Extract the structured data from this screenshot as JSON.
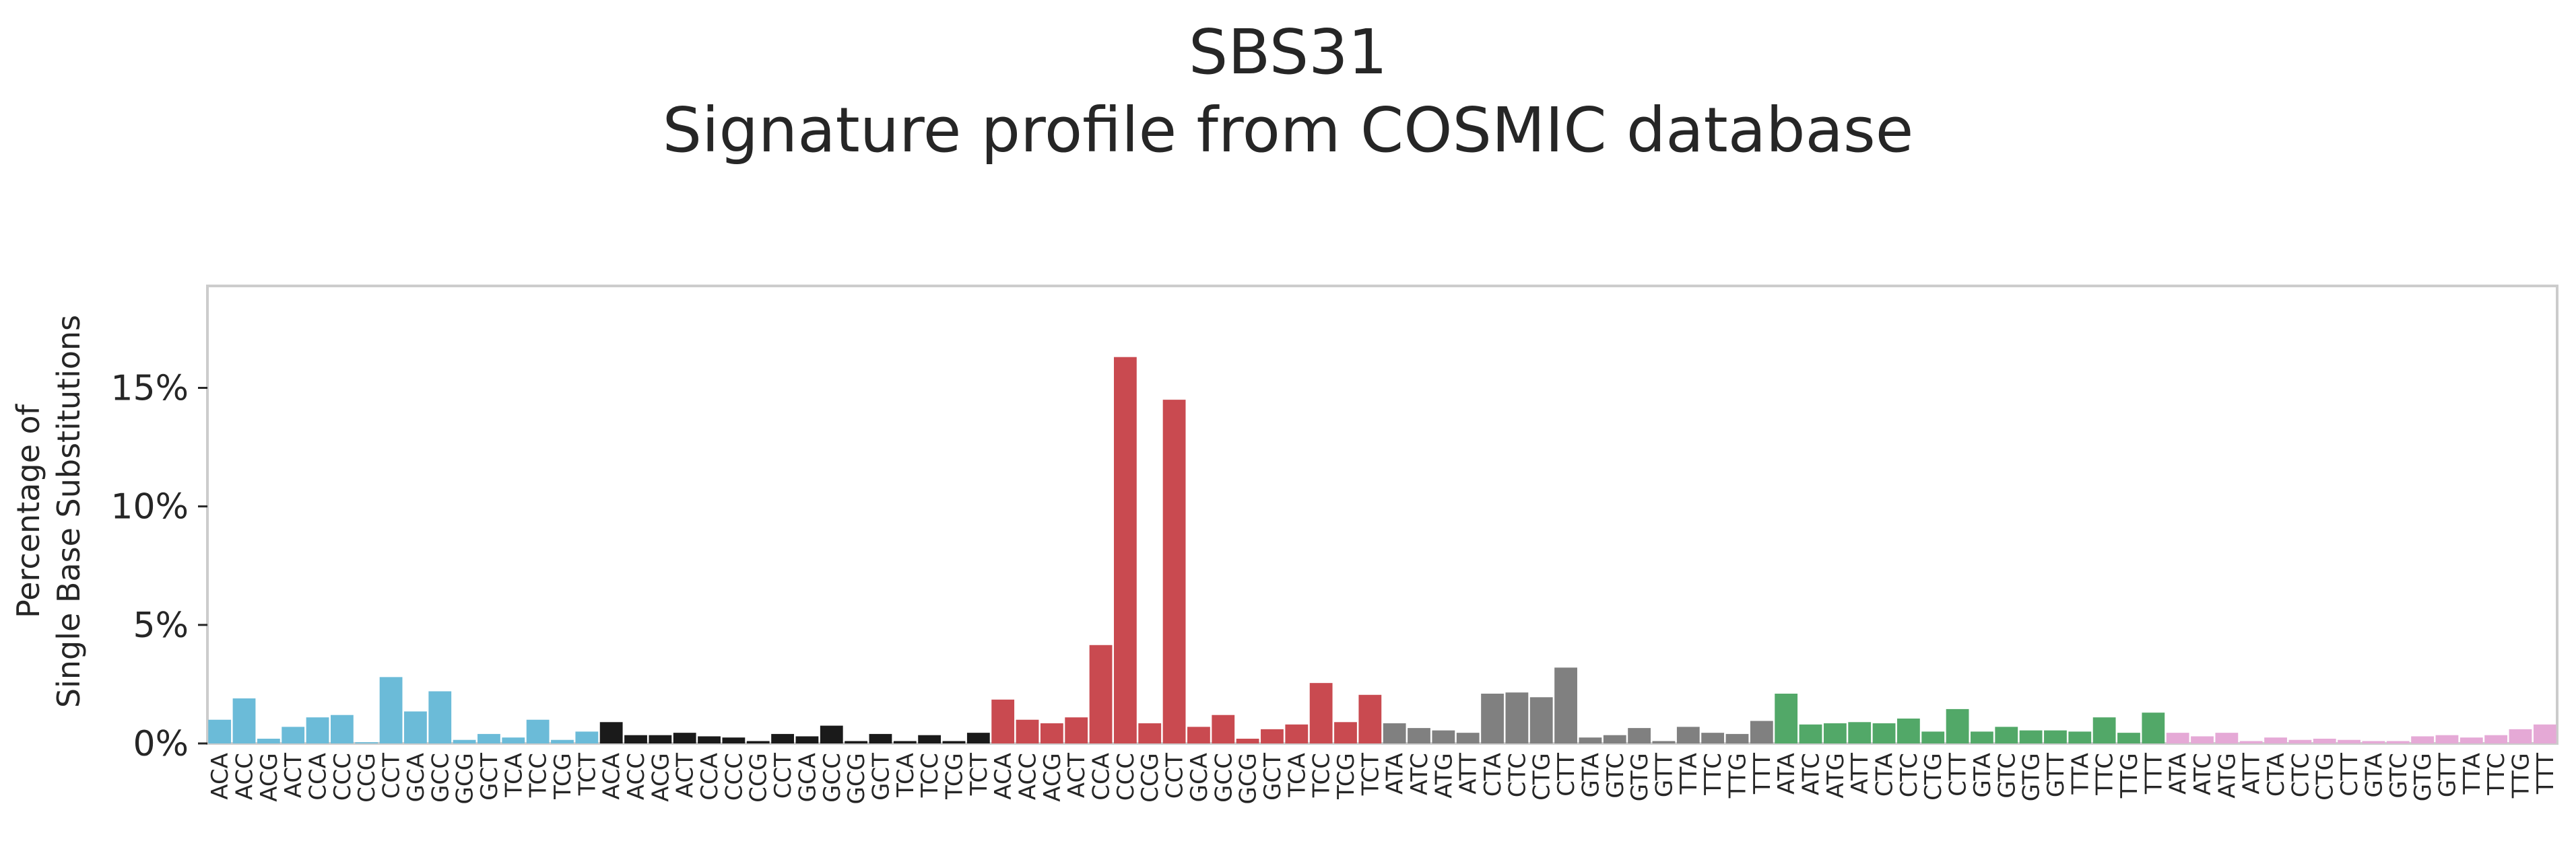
{
  "chart_data": {
    "type": "bar",
    "title": "SBS31",
    "subtitle": "Signature profile from COSMIC database",
    "ylabel_line1": "Percentage of",
    "ylabel_line2": "Single Base Substitutions",
    "ylim": [
      0,
      19.3
    ],
    "yticks": [
      {
        "value": 0,
        "label": "0%"
      },
      {
        "value": 5,
        "label": "5%"
      },
      {
        "value": 10,
        "label": "10%"
      },
      {
        "value": 15,
        "label": "15%"
      }
    ],
    "grid": false,
    "legend": "none",
    "categories": [
      "ACA",
      "ACC",
      "ACG",
      "ACT",
      "CCA",
      "CCC",
      "CCG",
      "CCT",
      "GCA",
      "GCC",
      "GCG",
      "GCT",
      "TCA",
      "TCC",
      "TCG",
      "TCT",
      "ACA",
      "ACC",
      "ACG",
      "ACT",
      "CCA",
      "CCC",
      "CCG",
      "CCT",
      "GCA",
      "GCC",
      "GCG",
      "GCT",
      "TCA",
      "TCC",
      "TCG",
      "TCT",
      "ACA",
      "ACC",
      "ACG",
      "ACT",
      "CCA",
      "CCC",
      "CCG",
      "CCT",
      "GCA",
      "GCC",
      "GCG",
      "GCT",
      "TCA",
      "TCC",
      "TCG",
      "TCT",
      "ATA",
      "ATC",
      "ATG",
      "ATT",
      "CTA",
      "CTC",
      "CTG",
      "CTT",
      "GTA",
      "GTC",
      "GTG",
      "GTT",
      "TTA",
      "TTC",
      "TTG",
      "TTT",
      "ATA",
      "ATC",
      "ATG",
      "ATT",
      "CTA",
      "CTC",
      "CTG",
      "CTT",
      "GTA",
      "GTC",
      "GTG",
      "GTT",
      "TTA",
      "TTC",
      "TTG",
      "TTT",
      "ATA",
      "ATC",
      "ATG",
      "ATT",
      "CTA",
      "CTC",
      "CTG",
      "CTT",
      "GTA",
      "GTC",
      "GTG",
      "GTT",
      "TTA",
      "TTC",
      "TTG",
      "TTT"
    ],
    "values": [
      1.0,
      1.9,
      0.2,
      0.7,
      1.1,
      1.2,
      0.05,
      2.8,
      1.35,
      2.2,
      0.15,
      0.4,
      0.25,
      1.0,
      0.15,
      0.5,
      0.9,
      0.35,
      0.35,
      0.45,
      0.3,
      0.25,
      0.1,
      0.4,
      0.3,
      0.75,
      0.1,
      0.4,
      0.1,
      0.35,
      0.1,
      0.45,
      1.85,
      1.0,
      0.85,
      1.1,
      4.15,
      16.3,
      0.85,
      14.5,
      0.7,
      1.2,
      0.2,
      0.6,
      0.8,
      2.55,
      0.9,
      2.05,
      0.85,
      0.65,
      0.55,
      0.45,
      2.1,
      2.15,
      1.95,
      3.2,
      0.25,
      0.35,
      0.65,
      0.1,
      0.7,
      0.45,
      0.4,
      0.95,
      2.1,
      0.8,
      0.85,
      0.9,
      0.85,
      1.05,
      0.5,
      1.45,
      0.5,
      0.7,
      0.55,
      0.55,
      0.5,
      1.1,
      0.45,
      1.3,
      0.45,
      0.3,
      0.45,
      0.1,
      0.25,
      0.15,
      0.2,
      0.15,
      0.1,
      0.1,
      0.3,
      0.35,
      0.25,
      0.35,
      0.6,
      0.8
    ],
    "group_colors": [
      "#6bbbd8",
      "#1a1a1a",
      "#c94a50",
      "#808080",
      "#52a868",
      "#e5a9d6"
    ],
    "frame_color": "#cccccc"
  }
}
